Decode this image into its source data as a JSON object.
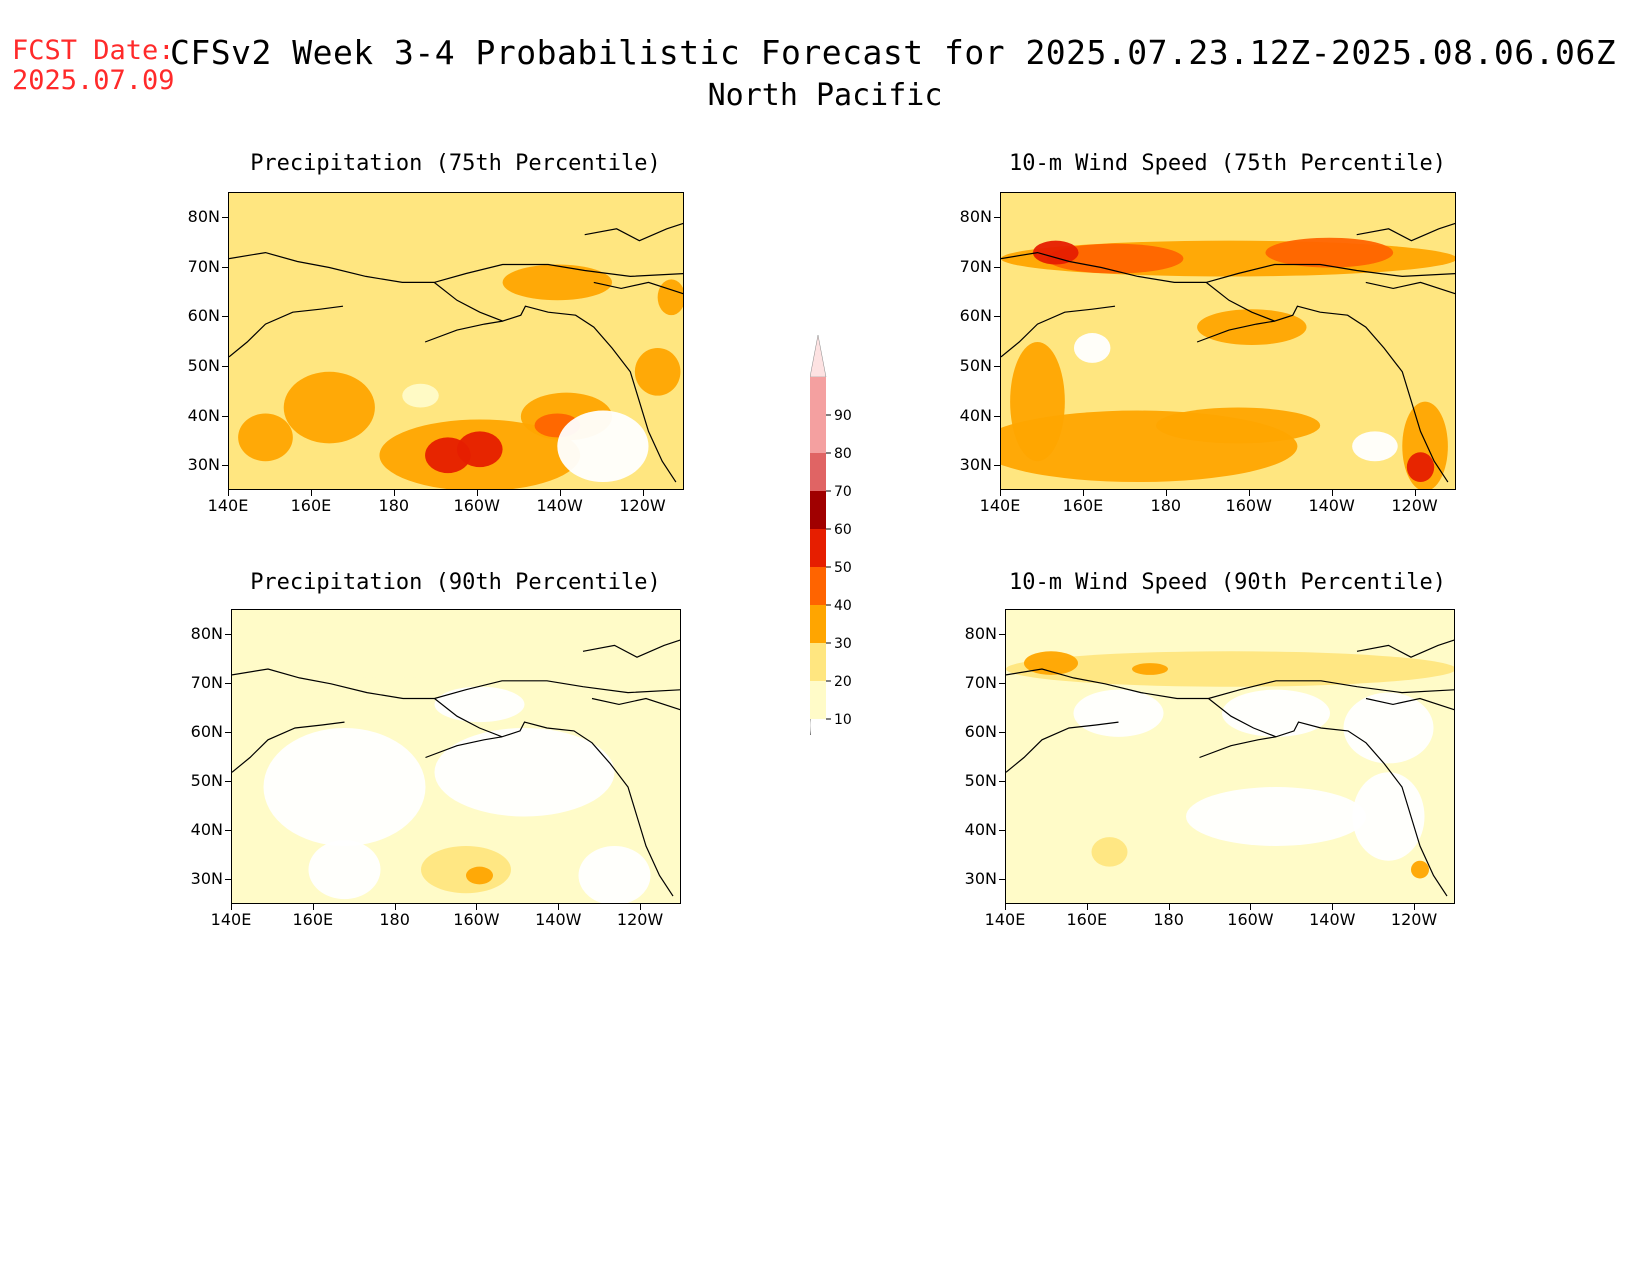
{
  "header": {
    "fcst_label": "FCST Date:",
    "fcst_date": "2025.07.09",
    "title": "CFSv2 Week 3-4 Probabilistic Forecast for 2025.07.23.12Z-2025.08.06.06Z",
    "subtitle": "North Pacific"
  },
  "axes": {
    "y_ticks": [
      "80N",
      "70N",
      "60N",
      "50N",
      "40N",
      "30N"
    ],
    "x_ticks": [
      "140E",
      "160E",
      "180",
      "160W",
      "140W",
      "120W"
    ]
  },
  "panels": [
    {
      "id": "precip75",
      "title": "Precipitation (75th Percentile)"
    },
    {
      "id": "wind75",
      "title": "10-m Wind Speed (75th Percentile)"
    },
    {
      "id": "precip90",
      "title": "Precipitation (90th Percentile)"
    },
    {
      "id": "wind90",
      "title": "10-m Wind Speed (90th Percentile)"
    }
  ],
  "colorbar": {
    "levels": [
      "10",
      "20",
      "30",
      "40",
      "50",
      "60",
      "70",
      "80",
      "90"
    ],
    "colors": [
      "#fffbc8",
      "#ffe680",
      "#ffa500",
      "#ff6400",
      "#e61e00",
      "#a00000",
      "#e06464",
      "#f4a0a0",
      "#fde2e2"
    ]
  }
}
